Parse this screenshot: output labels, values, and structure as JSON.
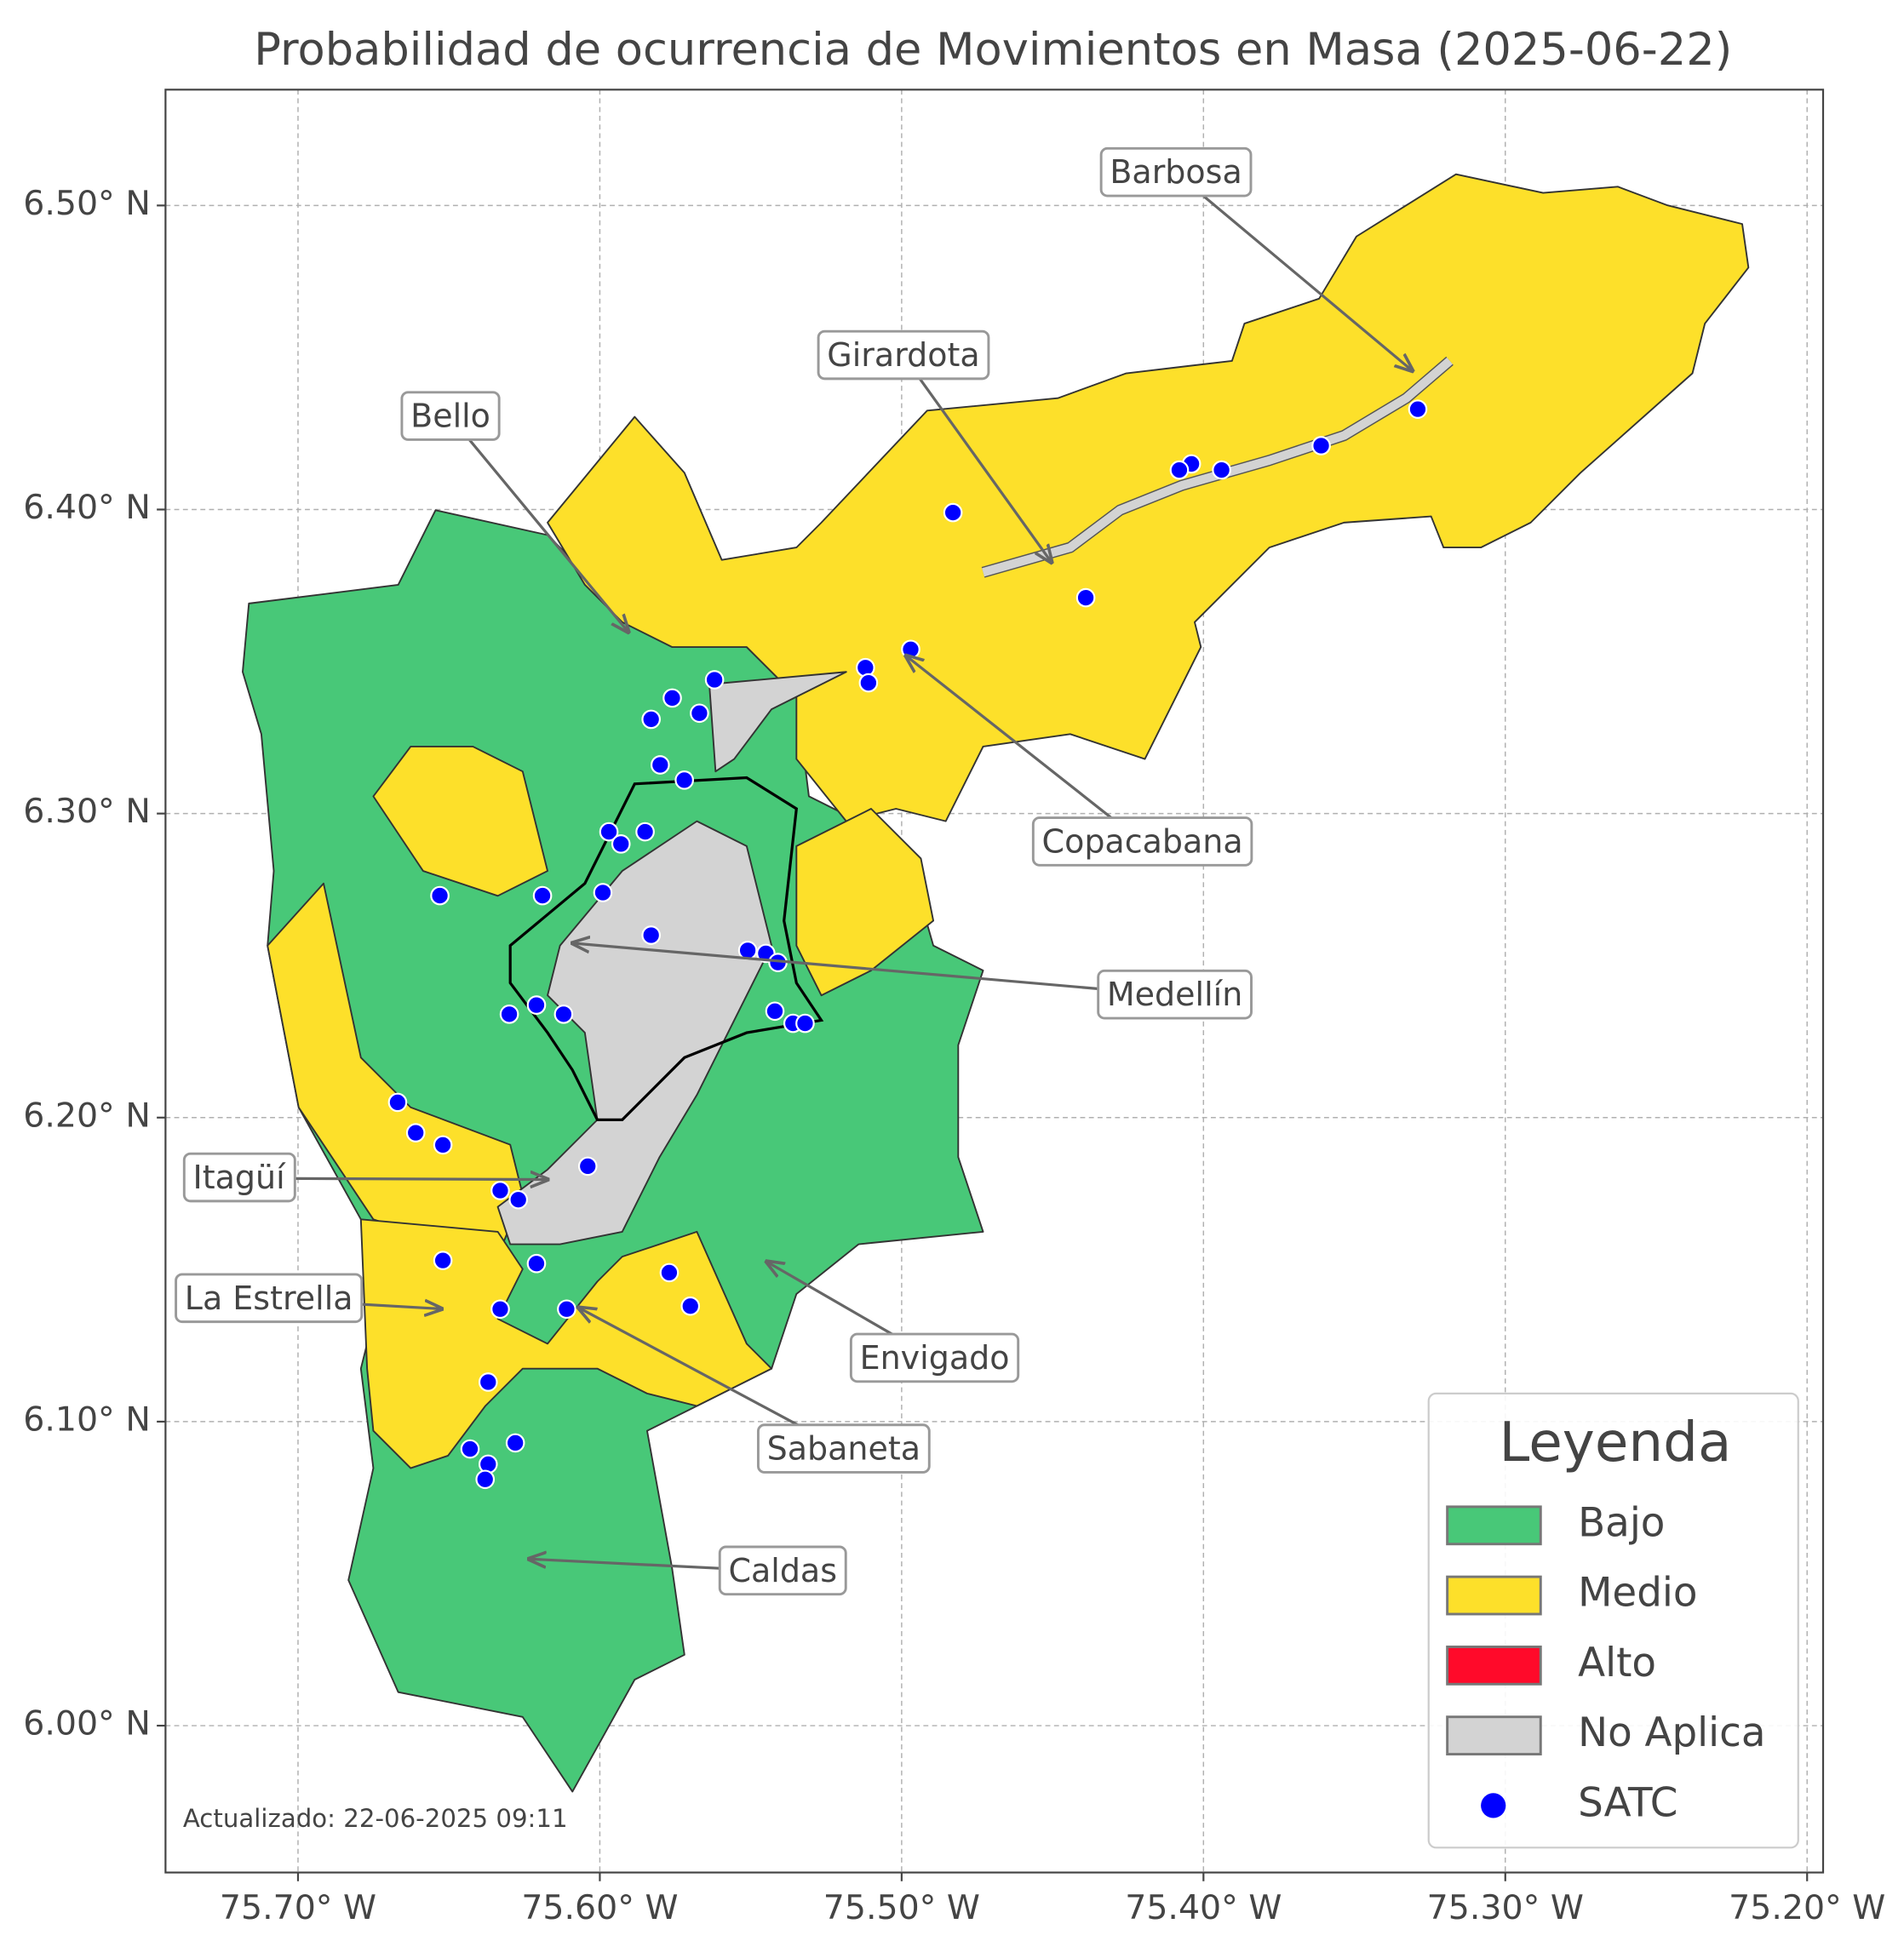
{
  "map": {
    "title": "Probabilidad de ocurrencia de Movimientos en Masa (2025-06-22)",
    "xlim": [
      -75.7439,
      -75.1947
    ],
    "ylim": [
      5.9517,
      6.5381
    ],
    "xticks": [
      {
        "value": -75.7,
        "label": "75.70° W"
      },
      {
        "value": -75.6,
        "label": "75.60° W"
      },
      {
        "value": -75.5,
        "label": "75.50° W"
      },
      {
        "value": -75.4,
        "label": "75.40° W"
      },
      {
        "value": -75.3,
        "label": "75.30° W"
      },
      {
        "value": -75.2,
        "label": "75.20° W"
      }
    ],
    "yticks": [
      {
        "value": 6.0,
        "label": "6.00° N"
      },
      {
        "value": 6.1,
        "label": "6.10° N"
      },
      {
        "value": 6.2,
        "label": "6.20° N"
      },
      {
        "value": 6.3,
        "label": "6.30° N"
      },
      {
        "value": 6.4,
        "label": "6.40° N"
      },
      {
        "value": 6.5,
        "label": "6.50° N"
      }
    ],
    "grid": true,
    "annotations": [
      "Barbosa",
      "Girardota",
      "Bello",
      "Copacabana",
      "Medellín",
      "Itagüí",
      "La Estrella",
      "Envigado",
      "Sabaneta",
      "Caldas"
    ],
    "legend": {
      "title": "Leyenda",
      "items": [
        {
          "label": "Bajo",
          "color": "#48c878"
        },
        {
          "label": "Medio",
          "color": "#fde02a"
        },
        {
          "label": "Alto",
          "color": "#ff0a2a"
        },
        {
          "label": "No Aplica",
          "color": "#d3d3d3"
        },
        {
          "label": "SATC",
          "color": "#0000ff"
        }
      ]
    },
    "stations": {
      "lon": [
        -75.329,
        -75.361,
        -75.394,
        -75.404,
        -75.408,
        -75.483,
        -75.439,
        -75.497,
        -75.512,
        -75.511,
        -75.562,
        -75.576,
        -75.567,
        -75.583,
        -75.58,
        -75.572,
        -75.597,
        -75.585,
        -75.593,
        -75.653,
        -75.619,
        -75.599,
        -75.583,
        -75.551,
        -75.545,
        -75.541,
        -75.542,
        -75.536,
        -75.532,
        -75.63,
        -75.621,
        -75.612,
        -75.667,
        -75.661,
        -75.652,
        -75.604,
        -75.633,
        -75.627,
        -75.652,
        -75.621,
        -75.577,
        -75.57,
        -75.633,
        -75.611,
        -75.637,
        -75.643,
        -75.628,
        -75.637,
        -75.638
      ],
      "lat": [
        6.433,
        6.421,
        6.413,
        6.415,
        6.413,
        6.399,
        6.371,
        6.354,
        6.348,
        6.343,
        6.344,
        6.338,
        6.333,
        6.331,
        6.316,
        6.311,
        6.294,
        6.294,
        6.29,
        6.273,
        6.273,
        6.274,
        6.26,
        6.255,
        6.254,
        6.251,
        6.235,
        6.231,
        6.231,
        6.234,
        6.237,
        6.234,
        6.205,
        6.195,
        6.191,
        6.184,
        6.176,
        6.173,
        6.153,
        6.152,
        6.149,
        6.138,
        6.137,
        6.137,
        6.113,
        6.091,
        6.093,
        6.086,
        6.081
      ]
    },
    "footer": "Actualizado: 22-06-2025 09:11"
  }
}
